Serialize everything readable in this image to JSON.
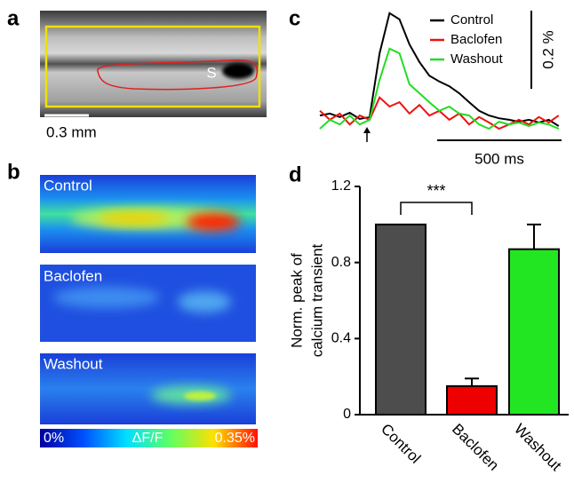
{
  "panel_labels": [
    "a",
    "b",
    "c",
    "d"
  ],
  "panel_a": {
    "region_label": "S",
    "scale_bar": "0.3 mm"
  },
  "panel_b": {
    "maps": [
      "Control",
      "Baclofen",
      "Washout"
    ],
    "colorbar": {
      "min": "0%",
      "name": "ΔF/F",
      "max": "0.35%"
    }
  },
  "chart_data": [
    {
      "type": "line",
      "x": [
        0,
        40,
        80,
        120,
        160,
        200,
        240,
        280,
        320,
        360,
        400,
        440,
        480,
        520,
        560,
        600,
        640,
        680,
        720,
        760,
        800,
        840,
        880,
        920,
        960
      ],
      "series": [
        {
          "name": "Control",
          "color": "#000000",
          "values": [
            0.018,
            0.023,
            0.014,
            0.025,
            0.009,
            0.014,
            0.177,
            0.28,
            0.264,
            0.2,
            0.155,
            0.12,
            0.105,
            0.093,
            0.075,
            0.052,
            0.03,
            0.018,
            0.011,
            0.007,
            0.002,
            0.007,
            0,
            0.007,
            -0.009
          ]
        },
        {
          "name": "Baclofen",
          "color": "#ee1111",
          "values": [
            0.03,
            0.007,
            0.023,
            -0.005,
            0.018,
            0.007,
            0.064,
            0.041,
            0.052,
            0.023,
            0.045,
            0.018,
            0.03,
            0.007,
            0.023,
            -0.005,
            0.014,
            0,
            -0.016,
            -0.005,
            0.007,
            -0.005,
            0.014,
            0,
            0.018
          ]
        },
        {
          "name": "Washout",
          "color": "#22dd22",
          "values": [
            -0.016,
            0.007,
            -0.005,
            0.018,
            -0.005,
            0.007,
            0.109,
            0.189,
            0.177,
            0.098,
            0.075,
            0.052,
            0.03,
            0.041,
            0.023,
            0.018,
            -0.005,
            -0.016,
            0.002,
            -0.005,
            0,
            -0.009,
            0,
            -0.005,
            -0.016
          ]
        }
      ],
      "scale_bars": [
        {
          "label": "0.2 %",
          "value": 0.2
        },
        {
          "label": "500 ms",
          "value": 500
        }
      ]
    },
    {
      "type": "bar",
      "ylabel": [
        "Norm. peak of",
        "calcium transient"
      ],
      "categories": [
        "Control",
        "Baclofen",
        "Washout"
      ],
      "values": [
        1.0,
        0.15,
        0.87
      ],
      "errors": [
        0,
        0.04,
        0.13
      ],
      "colors": [
        "#4d4d4d",
        "#ee0000",
        "#22e622"
      ],
      "ylim": [
        0,
        1.2
      ],
      "yticks": [
        0,
        0.4,
        0.8,
        1.2
      ],
      "annotation": "***"
    }
  ]
}
